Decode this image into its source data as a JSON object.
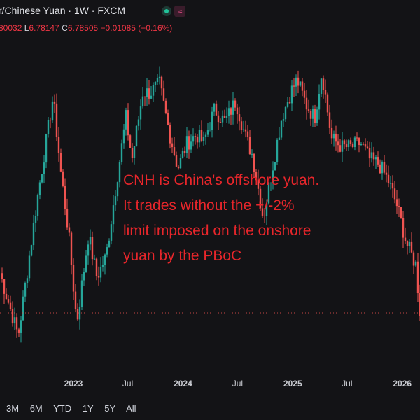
{
  "header": {
    "title": "r/Chinese Yuan · 1W · FXCM",
    "status_color": "#22c39a",
    "badge_icon": "≈"
  },
  "ohlc": {
    "open_value": "80032",
    "low_label": "L",
    "low_value": "6.78147",
    "close_label": "C",
    "close_value": "6.78505",
    "change": "−0.01085 (−0.16%)"
  },
  "annotation": {
    "lines": [
      "CNH is China's offshore yuan.",
      "It trades without the +/-2%",
      "limit imposed on the onshore",
      "yuan by the PBoC"
    ],
    "color": "#e8262b"
  },
  "range_buttons": [
    "3M",
    "6M",
    "YTD",
    "1Y",
    "5Y",
    "All"
  ],
  "colors": {
    "up": "#26a69a",
    "down": "#ef5350",
    "background": "#131316",
    "current_price_line": "#ef5350"
  },
  "chart_data": {
    "type": "line",
    "x_tick_labels": [
      "2023",
      "Jul",
      "2024",
      "Jul",
      "2025",
      "Jul",
      "2026"
    ],
    "x_tick_dates": [
      "2023-01-01",
      "2023-07-01",
      "2024-01-01",
      "2024-07-01",
      "2025-01-01",
      "2025-07-01",
      "2026-01-01"
    ],
    "x_range": [
      "2022-05-01",
      "2026-03-01"
    ],
    "y_range": [
      6.65,
      7.45
    ],
    "current_price": 6.78505,
    "grid": false,
    "series": [
      {
        "points": [
          [
            "2022-05-01",
            6.88
          ],
          [
            "2022-07-01",
            6.73
          ],
          [
            "2022-09-01",
            7.05
          ],
          [
            "2022-10-25",
            7.3
          ],
          [
            "2022-11-20",
            7.12
          ],
          [
            "2022-12-15",
            6.98
          ],
          [
            "2023-01-12",
            6.76
          ],
          [
            "2023-02-20",
            6.97
          ],
          [
            "2023-03-20",
            6.87
          ],
          [
            "2023-04-20",
            6.92
          ],
          [
            "2023-05-25",
            7.1
          ],
          [
            "2023-06-25",
            7.25
          ],
          [
            "2023-07-15",
            7.15
          ],
          [
            "2023-08-20",
            7.31
          ],
          [
            "2023-09-15",
            7.31
          ],
          [
            "2023-10-15",
            7.33
          ],
          [
            "2023-11-15",
            7.22
          ],
          [
            "2023-12-15",
            7.13
          ],
          [
            "2024-01-15",
            7.19
          ],
          [
            "2024-02-15",
            7.21
          ],
          [
            "2024-03-10",
            7.19
          ],
          [
            "2024-04-15",
            7.27
          ],
          [
            "2024-05-20",
            7.24
          ],
          [
            "2024-06-25",
            7.29
          ],
          [
            "2024-07-25",
            7.21
          ],
          [
            "2024-08-20",
            7.16
          ],
          [
            "2024-09-25",
            7.01
          ],
          [
            "2024-10-25",
            7.13
          ],
          [
            "2024-11-25",
            7.25
          ],
          [
            "2024-12-25",
            7.31
          ],
          [
            "2025-01-15",
            7.34
          ],
          [
            "2025-02-15",
            7.28
          ],
          [
            "2025-03-15",
            7.25
          ],
          [
            "2025-04-08",
            7.36
          ],
          [
            "2025-05-10",
            7.2
          ],
          [
            "2025-06-15",
            7.18
          ],
          [
            "2025-07-15",
            7.18
          ],
          [
            "2025-08-15",
            7.19
          ],
          [
            "2025-09-15",
            7.15
          ],
          [
            "2025-10-15",
            7.14
          ],
          [
            "2025-11-15",
            7.1
          ],
          [
            "2025-12-15",
            7.04
          ],
          [
            "2026-01-15",
            6.95
          ],
          [
            "2026-02-15",
            6.9
          ],
          [
            "2026-03-01",
            6.79
          ]
        ]
      }
    ]
  }
}
